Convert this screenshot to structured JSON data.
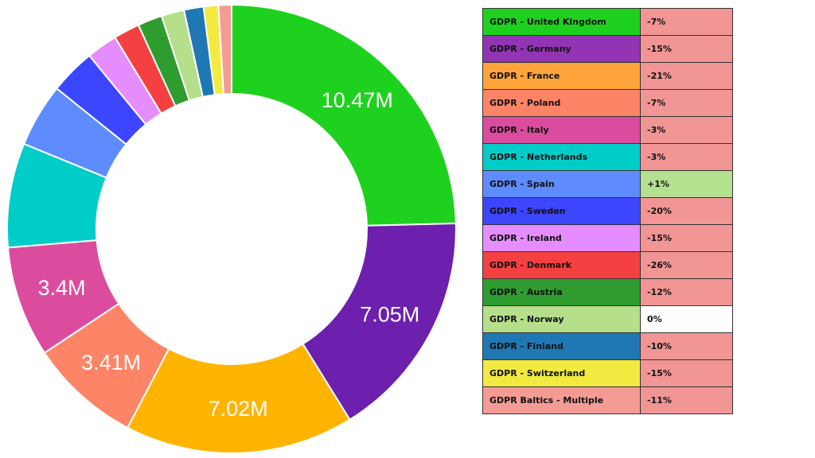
{
  "chart_data": {
    "type": "pie",
    "title": "",
    "donut": true,
    "series": [
      {
        "name": "GDPR - United Kingdom",
        "value": 10.47,
        "label": "10.47M",
        "color": "#1fd11f",
        "change": "-7%",
        "change_color": "#f19595"
      },
      {
        "name": "GDPR - Germany",
        "value": 7.05,
        "label": "7.05M",
        "color": "#6d1fad",
        "legend_color": "#9234b3",
        "change": "-15%",
        "change_color": "#f19595"
      },
      {
        "name": "GDPR - France",
        "value": 7.02,
        "label": "7.02M",
        "color": "#ffb400",
        "legend_color": "#ffa43b",
        "change": "-21%",
        "change_color": "#f19595"
      },
      {
        "name": "GDPR - Poland",
        "value": 3.41,
        "label": "3.41M",
        "color": "#fd8466",
        "change": "-7%",
        "change_color": "#f19595"
      },
      {
        "name": "GDPR - Italy",
        "value": 3.4,
        "label": "3.4M",
        "color": "#dc4c9e",
        "change": "-3%",
        "change_color": "#f19595"
      },
      {
        "name": "GDPR - Netherlands",
        "value": 3.2,
        "label": "",
        "color": "#00cdc8",
        "change": "-3%",
        "change_color": "#f19595"
      },
      {
        "name": "GDPR - Spain",
        "value": 1.95,
        "label": "",
        "color": "#5e8cff",
        "change": "+1%",
        "change_color": "#b3e18f"
      },
      {
        "name": "GDPR - Sweden",
        "value": 1.4,
        "label": "",
        "color": "#3d46ff",
        "change": "-20%",
        "change_color": "#f19595"
      },
      {
        "name": "GDPR - Ireland",
        "value": 0.95,
        "label": "",
        "color": "#e58cff",
        "change": "-15%",
        "change_color": "#f19595"
      },
      {
        "name": "GDPR - Denmark",
        "value": 0.8,
        "label": "",
        "color": "#f44040",
        "change": "-26%",
        "change_color": "#f19595"
      },
      {
        "name": "GDPR - Austria",
        "value": 0.75,
        "label": "",
        "color": "#2f9c2f",
        "change": "-12%",
        "change_color": "#f19595"
      },
      {
        "name": "GDPR - Norway",
        "value": 0.7,
        "label": "",
        "color": "#b5df8b",
        "change": "0%",
        "change_color": "#ffffff"
      },
      {
        "name": "GDPR - Finland",
        "value": 0.6,
        "label": "",
        "color": "#1f78b4",
        "change": "-10%",
        "change_color": "#f19595"
      },
      {
        "name": "GDPR - Switzerland",
        "value": 0.45,
        "label": "",
        "color": "#f2ea40",
        "change": "-15%",
        "change_color": "#f19595"
      },
      {
        "name": "GDPR Baltics - Multiple",
        "value": 0.4,
        "label": "",
        "color": "#f59b95",
        "change": "-11%",
        "change_color": "#f19595"
      }
    ]
  }
}
